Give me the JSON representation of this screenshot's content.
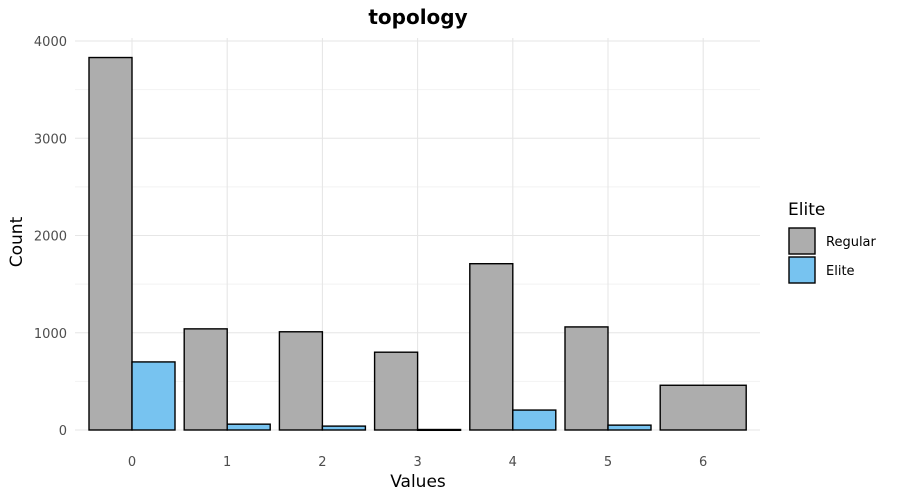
{
  "chart_data": {
    "type": "bar",
    "title": "topology",
    "xlabel": "Values",
    "ylabel": "Count",
    "categories": [
      "0",
      "1",
      "2",
      "3",
      "4",
      "5",
      "6"
    ],
    "series": [
      {
        "name": "Regular",
        "color": "#adadad",
        "values": [
          3830,
          1040,
          1010,
          800,
          1710,
          1060,
          460
        ]
      },
      {
        "name": "Elite",
        "color": "#77c3f0",
        "values": [
          700,
          60,
          40,
          5,
          205,
          50,
          null
        ]
      }
    ],
    "y_ticks": [
      "0",
      "1000",
      "2000",
      "3000",
      "4000"
    ],
    "ylim": [
      0,
      4000
    ],
    "grid": true,
    "legend": {
      "title": "Elite",
      "position": "right"
    }
  }
}
